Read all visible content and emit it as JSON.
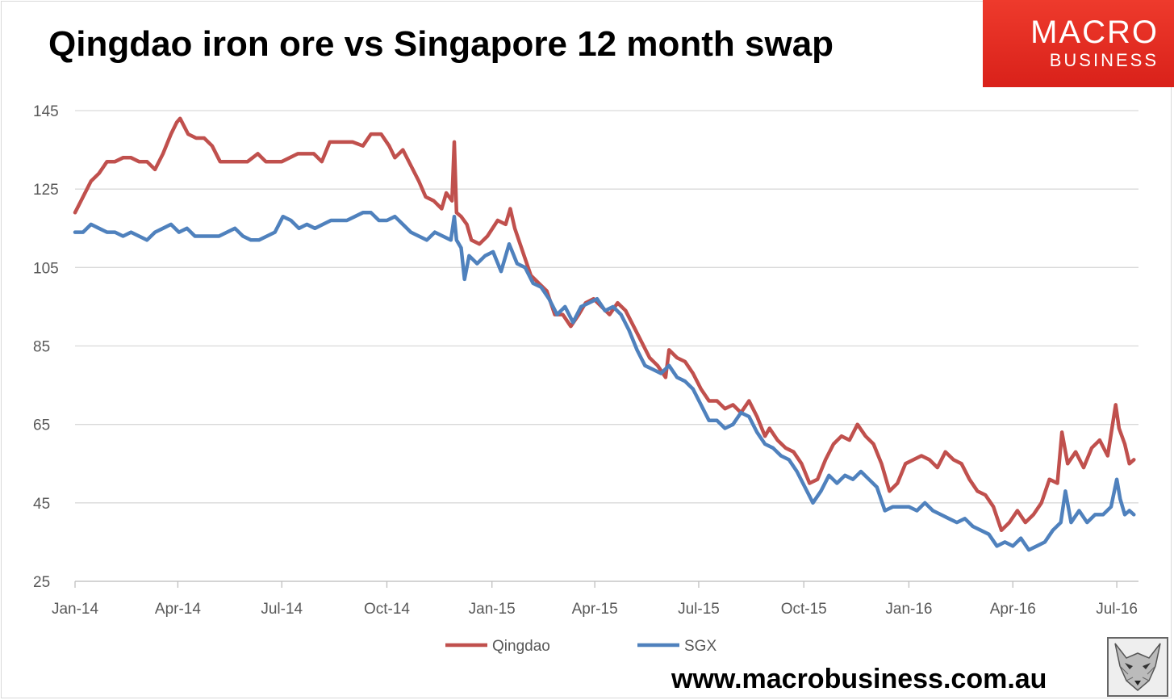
{
  "header": {
    "title": "Qingdao iron ore vs Singapore 12 month swap"
  },
  "brand": {
    "line1": "MACRO",
    "line2": "BUSINESS",
    "color": "#e8261d"
  },
  "footer": {
    "url": "www.macrobusiness.com.au",
    "logo_icon": "fox-logo-icon"
  },
  "chart_data": {
    "type": "line",
    "title": "Qingdao iron ore vs Singapore 12 month swap",
    "xlabel": "",
    "ylabel": "",
    "ylim": [
      25,
      145
    ],
    "yticks": [
      25,
      45,
      65,
      85,
      105,
      125,
      145
    ],
    "xticks": [
      "Jan-14",
      "Apr-14",
      "Jul-14",
      "Oct-14",
      "Jan-15",
      "Apr-15",
      "Jul-15",
      "Oct-15",
      "Jan-16",
      "Apr-16",
      "Jul-16"
    ],
    "xlim": [
      "2014-01-01",
      "2016-07-20"
    ],
    "grid": true,
    "legend": "bottom",
    "series": [
      {
        "name": "Qingdao",
        "color": "#c0504d",
        "points": [
          [
            "2014-01-01",
            119
          ],
          [
            "2014-01-08",
            123
          ],
          [
            "2014-01-15",
            127
          ],
          [
            "2014-01-22",
            129
          ],
          [
            "2014-01-29",
            132
          ],
          [
            "2014-02-05",
            132
          ],
          [
            "2014-02-12",
            133
          ],
          [
            "2014-02-19",
            133
          ],
          [
            "2014-02-26",
            132
          ],
          [
            "2014-03-05",
            132
          ],
          [
            "2014-03-12",
            130
          ],
          [
            "2014-03-19",
            134
          ],
          [
            "2014-03-26",
            139
          ],
          [
            "2014-03-31",
            142
          ],
          [
            "2014-04-03",
            143
          ],
          [
            "2014-04-10",
            139
          ],
          [
            "2014-04-17",
            138
          ],
          [
            "2014-04-24",
            138
          ],
          [
            "2014-05-01",
            136
          ],
          [
            "2014-05-08",
            132
          ],
          [
            "2014-05-20",
            132
          ],
          [
            "2014-06-01",
            132
          ],
          [
            "2014-06-10",
            134
          ],
          [
            "2014-06-17",
            132
          ],
          [
            "2014-07-01",
            132
          ],
          [
            "2014-07-15",
            134
          ],
          [
            "2014-07-29",
            134
          ],
          [
            "2014-08-05",
            132
          ],
          [
            "2014-08-12",
            137
          ],
          [
            "2014-08-22",
            137
          ],
          [
            "2014-09-01",
            137
          ],
          [
            "2014-09-10",
            136
          ],
          [
            "2014-09-17",
            139
          ],
          [
            "2014-09-26",
            139
          ],
          [
            "2014-10-03",
            136
          ],
          [
            "2014-10-08",
            133
          ],
          [
            "2014-10-15",
            135
          ],
          [
            "2014-10-22",
            131
          ],
          [
            "2014-10-29",
            127
          ],
          [
            "2014-11-04",
            123
          ],
          [
            "2014-11-11",
            122
          ],
          [
            "2014-11-18",
            120
          ],
          [
            "2014-11-22",
            124
          ],
          [
            "2014-11-27",
            122
          ],
          [
            "2014-11-29",
            137
          ],
          [
            "2014-12-01",
            119
          ],
          [
            "2014-12-05",
            118
          ],
          [
            "2014-12-10",
            116
          ],
          [
            "2014-12-14",
            112
          ],
          [
            "2014-12-21",
            111
          ],
          [
            "2014-12-28",
            113
          ],
          [
            "2015-01-06",
            117
          ],
          [
            "2015-01-13",
            116
          ],
          [
            "2015-01-17",
            120
          ],
          [
            "2015-01-21",
            115
          ],
          [
            "2015-01-28",
            109
          ],
          [
            "2015-02-04",
            103
          ],
          [
            "2015-02-11",
            101
          ],
          [
            "2015-02-18",
            99
          ],
          [
            "2015-02-25",
            93
          ],
          [
            "2015-03-04",
            93
          ],
          [
            "2015-03-11",
            90
          ],
          [
            "2015-03-18",
            93
          ],
          [
            "2015-03-24",
            96
          ],
          [
            "2015-03-31",
            97
          ],
          [
            "2015-04-07",
            95
          ],
          [
            "2015-04-14",
            93
          ],
          [
            "2015-04-21",
            96
          ],
          [
            "2015-04-28",
            94
          ],
          [
            "2015-05-05",
            90
          ],
          [
            "2015-05-12",
            86
          ],
          [
            "2015-05-19",
            82
          ],
          [
            "2015-05-26",
            80
          ],
          [
            "2015-06-02",
            77
          ],
          [
            "2015-06-05",
            84
          ],
          [
            "2015-06-12",
            82
          ],
          [
            "2015-06-19",
            81
          ],
          [
            "2015-06-26",
            78
          ],
          [
            "2015-07-03",
            74
          ],
          [
            "2015-07-10",
            71
          ],
          [
            "2015-07-17",
            71
          ],
          [
            "2015-07-24",
            69
          ],
          [
            "2015-07-31",
            70
          ],
          [
            "2015-08-07",
            68
          ],
          [
            "2015-08-14",
            71
          ],
          [
            "2015-08-21",
            67
          ],
          [
            "2015-08-28",
            62
          ],
          [
            "2015-09-01",
            64
          ],
          [
            "2015-09-08",
            61
          ],
          [
            "2015-09-15",
            59
          ],
          [
            "2015-09-22",
            58
          ],
          [
            "2015-09-29",
            55
          ],
          [
            "2015-10-06",
            50
          ],
          [
            "2015-10-13",
            51
          ],
          [
            "2015-10-20",
            56
          ],
          [
            "2015-10-27",
            60
          ],
          [
            "2015-11-03",
            62
          ],
          [
            "2015-11-10",
            61
          ],
          [
            "2015-11-17",
            65
          ],
          [
            "2015-11-24",
            62
          ],
          [
            "2015-12-01",
            60
          ],
          [
            "2015-12-08",
            55
          ],
          [
            "2015-12-15",
            48
          ],
          [
            "2015-12-22",
            50
          ],
          [
            "2015-12-29",
            55
          ],
          [
            "2016-01-05",
            56
          ],
          [
            "2016-01-12",
            57
          ],
          [
            "2016-01-19",
            56
          ],
          [
            "2016-01-26",
            54
          ],
          [
            "2016-02-02",
            58
          ],
          [
            "2016-02-09",
            56
          ],
          [
            "2016-02-16",
            55
          ],
          [
            "2016-02-23",
            51
          ],
          [
            "2016-03-01",
            48
          ],
          [
            "2016-03-08",
            47
          ],
          [
            "2016-03-15",
            44
          ],
          [
            "2016-03-22",
            38
          ],
          [
            "2016-03-29",
            40
          ],
          [
            "2016-04-05",
            43
          ],
          [
            "2016-04-12",
            40
          ],
          [
            "2016-04-19",
            42
          ],
          [
            "2016-04-26",
            45
          ],
          [
            "2016-05-03",
            51
          ],
          [
            "2016-05-10",
            50
          ],
          [
            "2016-05-14",
            63
          ],
          [
            "2016-05-19",
            55
          ],
          [
            "2016-05-26",
            58
          ],
          [
            "2016-06-02",
            54
          ],
          [
            "2016-06-09",
            59
          ],
          [
            "2016-06-16",
            61
          ],
          [
            "2016-06-23",
            57
          ],
          [
            "2016-06-30",
            70
          ],
          [
            "2016-07-03",
            64
          ],
          [
            "2016-07-08",
            60
          ],
          [
            "2016-07-12",
            55
          ],
          [
            "2016-07-16",
            56
          ]
        ]
      },
      {
        "name": "SGX",
        "color": "#4f81bd",
        "points": [
          [
            "2014-01-01",
            114
          ],
          [
            "2014-01-08",
            114
          ],
          [
            "2014-01-15",
            116
          ],
          [
            "2014-01-22",
            115
          ],
          [
            "2014-01-29",
            114
          ],
          [
            "2014-02-05",
            114
          ],
          [
            "2014-02-12",
            113
          ],
          [
            "2014-02-19",
            114
          ],
          [
            "2014-02-26",
            113
          ],
          [
            "2014-03-05",
            112
          ],
          [
            "2014-03-12",
            114
          ],
          [
            "2014-03-19",
            115
          ],
          [
            "2014-03-26",
            116
          ],
          [
            "2014-04-02",
            114
          ],
          [
            "2014-04-09",
            115
          ],
          [
            "2014-04-16",
            113
          ],
          [
            "2014-04-23",
            113
          ],
          [
            "2014-04-30",
            113
          ],
          [
            "2014-05-07",
            113
          ],
          [
            "2014-05-14",
            114
          ],
          [
            "2014-05-21",
            115
          ],
          [
            "2014-05-28",
            113
          ],
          [
            "2014-06-04",
            112
          ],
          [
            "2014-06-11",
            112
          ],
          [
            "2014-06-18",
            113
          ],
          [
            "2014-06-25",
            114
          ],
          [
            "2014-07-02",
            118
          ],
          [
            "2014-07-09",
            117
          ],
          [
            "2014-07-16",
            115
          ],
          [
            "2014-07-23",
            116
          ],
          [
            "2014-07-30",
            115
          ],
          [
            "2014-08-06",
            116
          ],
          [
            "2014-08-13",
            117
          ],
          [
            "2014-08-20",
            117
          ],
          [
            "2014-08-27",
            117
          ],
          [
            "2014-09-03",
            118
          ],
          [
            "2014-09-10",
            119
          ],
          [
            "2014-09-17",
            119
          ],
          [
            "2014-09-24",
            117
          ],
          [
            "2014-10-01",
            117
          ],
          [
            "2014-10-08",
            118
          ],
          [
            "2014-10-15",
            116
          ],
          [
            "2014-10-22",
            114
          ],
          [
            "2014-10-29",
            113
          ],
          [
            "2014-11-05",
            112
          ],
          [
            "2014-11-12",
            114
          ],
          [
            "2014-11-19",
            113
          ],
          [
            "2014-11-26",
            112
          ],
          [
            "2014-11-29",
            118
          ],
          [
            "2014-12-01",
            112
          ],
          [
            "2014-12-05",
            110
          ],
          [
            "2014-12-08",
            102
          ],
          [
            "2014-12-12",
            108
          ],
          [
            "2014-12-19",
            106
          ],
          [
            "2014-12-26",
            108
          ],
          [
            "2015-01-02",
            109
          ],
          [
            "2015-01-09",
            104
          ],
          [
            "2015-01-16",
            111
          ],
          [
            "2015-01-23",
            106
          ],
          [
            "2015-01-30",
            105
          ],
          [
            "2015-02-06",
            101
          ],
          [
            "2015-02-13",
            100
          ],
          [
            "2015-02-20",
            97
          ],
          [
            "2015-02-27",
            93
          ],
          [
            "2015-03-06",
            95
          ],
          [
            "2015-03-13",
            91
          ],
          [
            "2015-03-20",
            95
          ],
          [
            "2015-03-27",
            96
          ],
          [
            "2015-04-03",
            97
          ],
          [
            "2015-04-10",
            94
          ],
          [
            "2015-04-17",
            95
          ],
          [
            "2015-04-24",
            93
          ],
          [
            "2015-05-01",
            89
          ],
          [
            "2015-05-08",
            84
          ],
          [
            "2015-05-15",
            80
          ],
          [
            "2015-05-22",
            79
          ],
          [
            "2015-05-29",
            78
          ],
          [
            "2015-06-05",
            80
          ],
          [
            "2015-06-12",
            77
          ],
          [
            "2015-06-19",
            76
          ],
          [
            "2015-06-26",
            74
          ],
          [
            "2015-07-03",
            70
          ],
          [
            "2015-07-10",
            66
          ],
          [
            "2015-07-17",
            66
          ],
          [
            "2015-07-24",
            64
          ],
          [
            "2015-07-31",
            65
          ],
          [
            "2015-08-07",
            68
          ],
          [
            "2015-08-14",
            67
          ],
          [
            "2015-08-21",
            63
          ],
          [
            "2015-08-28",
            60
          ],
          [
            "2015-09-04",
            59
          ],
          [
            "2015-09-11",
            57
          ],
          [
            "2015-09-18",
            56
          ],
          [
            "2015-09-25",
            53
          ],
          [
            "2015-10-02",
            49
          ],
          [
            "2015-10-09",
            45
          ],
          [
            "2015-10-16",
            48
          ],
          [
            "2015-10-23",
            52
          ],
          [
            "2015-10-30",
            50
          ],
          [
            "2015-11-06",
            52
          ],
          [
            "2015-11-13",
            51
          ],
          [
            "2015-11-20",
            53
          ],
          [
            "2015-11-27",
            51
          ],
          [
            "2015-12-04",
            49
          ],
          [
            "2015-12-11",
            43
          ],
          [
            "2015-12-18",
            44
          ],
          [
            "2015-12-25",
            44
          ],
          [
            "2016-01-01",
            44
          ],
          [
            "2016-01-08",
            43
          ],
          [
            "2016-01-15",
            45
          ],
          [
            "2016-01-22",
            43
          ],
          [
            "2016-01-29",
            42
          ],
          [
            "2016-02-05",
            41
          ],
          [
            "2016-02-12",
            40
          ],
          [
            "2016-02-19",
            41
          ],
          [
            "2016-02-26",
            39
          ],
          [
            "2016-03-04",
            38
          ],
          [
            "2016-03-11",
            37
          ],
          [
            "2016-03-18",
            34
          ],
          [
            "2016-03-25",
            35
          ],
          [
            "2016-04-01",
            34
          ],
          [
            "2016-04-08",
            36
          ],
          [
            "2016-04-15",
            33
          ],
          [
            "2016-04-22",
            34
          ],
          [
            "2016-04-29",
            35
          ],
          [
            "2016-05-06",
            38
          ],
          [
            "2016-05-13",
            40
          ],
          [
            "2016-05-17",
            48
          ],
          [
            "2016-05-22",
            40
          ],
          [
            "2016-05-29",
            43
          ],
          [
            "2016-06-05",
            40
          ],
          [
            "2016-06-12",
            42
          ],
          [
            "2016-06-19",
            42
          ],
          [
            "2016-06-26",
            44
          ],
          [
            "2016-07-01",
            51
          ],
          [
            "2016-07-04",
            46
          ],
          [
            "2016-07-08",
            42
          ],
          [
            "2016-07-12",
            43
          ],
          [
            "2016-07-16",
            42
          ]
        ]
      }
    ]
  }
}
